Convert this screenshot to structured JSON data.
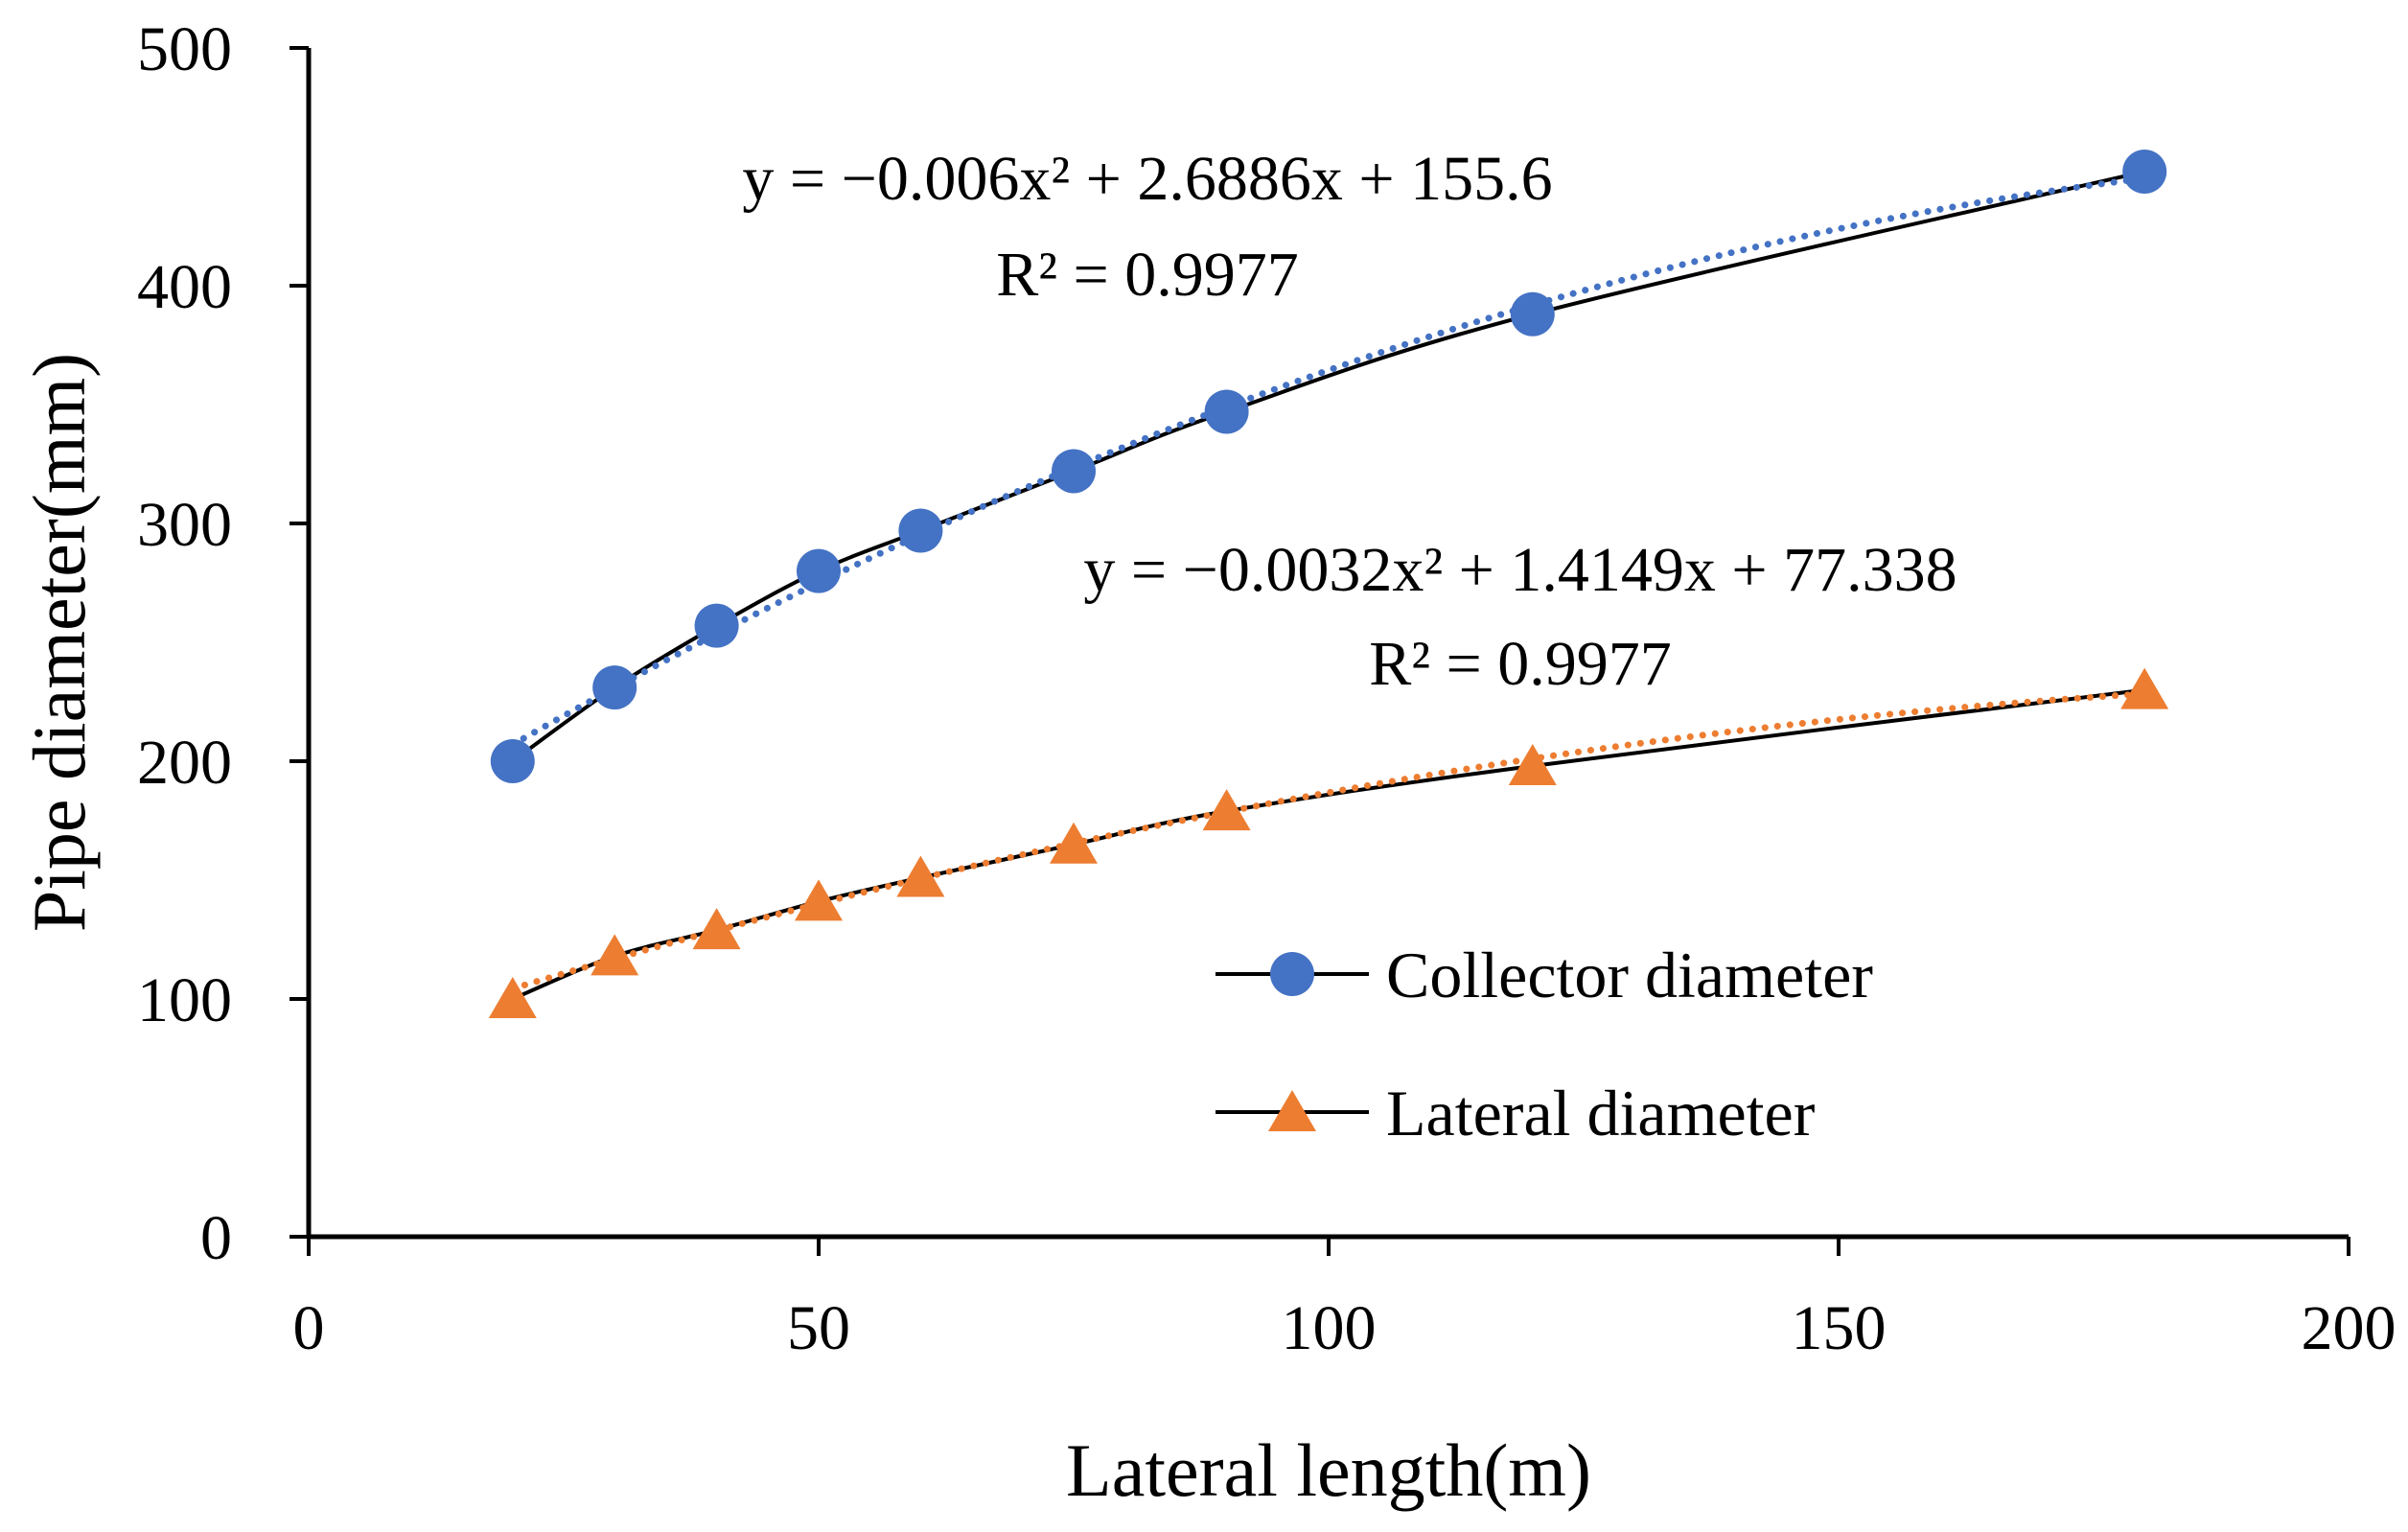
{
  "chart_data": {
    "type": "scatter",
    "title": "",
    "xlabel": "Lateral length(m)",
    "ylabel": "Pipe diameter(mm)",
    "xlim": [
      0,
      200
    ],
    "ylim": [
      0,
      500
    ],
    "xticks": [
      0,
      50,
      100,
      150,
      200
    ],
    "yticks": [
      0,
      100,
      200,
      300,
      400,
      500
    ],
    "grid": false,
    "legend_position": "lower-right",
    "series": [
      {
        "name": "Collector diameter",
        "marker": "circle",
        "color": "#4472c4",
        "x": [
          20,
          30,
          40,
          50,
          60,
          75,
          90,
          120,
          180
        ],
        "y": [
          200,
          231,
          257,
          280,
          297,
          322,
          347,
          388,
          448
        ],
        "trendline": {
          "type": "polynomial",
          "coefficients": [
            -0.006,
            2.6886,
            155.6
          ],
          "equation": "y = −0.006x² + 2.6886x + 155.6",
          "r2": "R² = 0.9977",
          "color": "#4472c4"
        }
      },
      {
        "name": "Lateral diameter",
        "marker": "triangle",
        "color": "#ed7d31",
        "x": [
          20,
          30,
          40,
          50,
          60,
          75,
          90,
          120,
          180
        ],
        "y": [
          100,
          118,
          129,
          141,
          151,
          165,
          179,
          198,
          230
        ],
        "trendline": {
          "type": "polynomial",
          "coefficients": [
            -0.0032,
            1.4149,
            77.338
          ],
          "equation": "y = −0.0032x² + 1.4149x + 77.338",
          "r2": "R² = 0.9977",
          "color": "#ed7d31"
        }
      }
    ]
  }
}
